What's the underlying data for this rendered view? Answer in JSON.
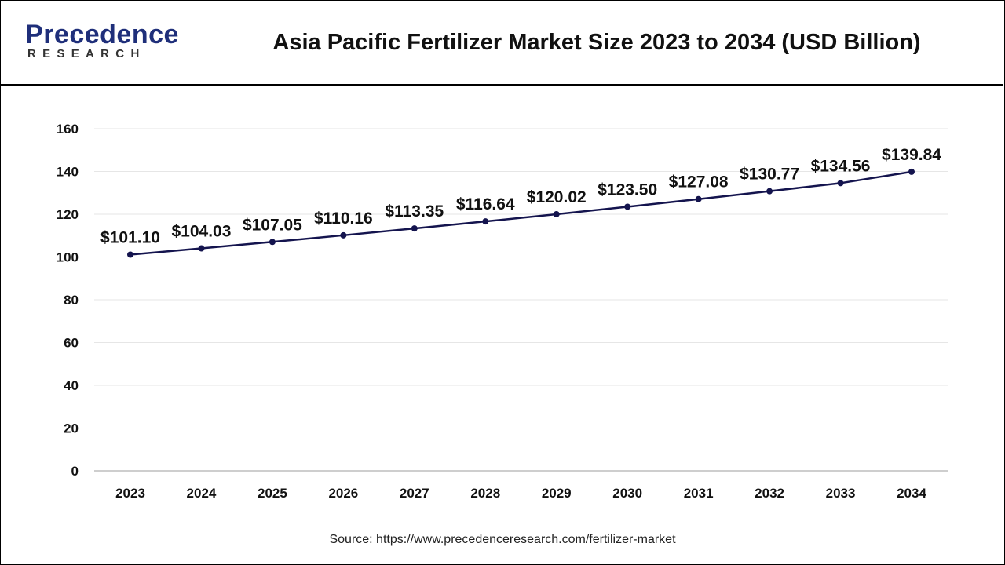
{
  "header": {
    "logo_initial": "P",
    "logo_rest": "recedence",
    "logo_sub": "RESEARCH",
    "title": "Asia Pacific Fertilizer Market Size 2023 to 2034 (USD Billion)"
  },
  "footer": {
    "source": "Source: https://www.precedenceresearch.com/fertilizer-market"
  },
  "colors": {
    "line": "#14144e",
    "grid": "#e6e6e6",
    "axis": "#bdbdbd",
    "brand": "#1f2f7a"
  },
  "chart_data": {
    "type": "line",
    "title": "Asia Pacific Fertilizer Market Size 2023 to 2034 (USD Billion)",
    "xlabel": "",
    "ylabel": "",
    "categories": [
      "2023",
      "2024",
      "2025",
      "2026",
      "2027",
      "2028",
      "2029",
      "2030",
      "2031",
      "2032",
      "2033",
      "2034"
    ],
    "values": [
      101.1,
      104.03,
      107.05,
      110.16,
      113.35,
      116.64,
      120.02,
      123.5,
      127.08,
      130.77,
      134.56,
      139.84
    ],
    "data_labels": [
      "$101.10",
      "$104.03",
      "$107.05",
      "$110.16",
      "$113.35",
      "$116.64",
      "$120.02",
      "$123.50",
      "$127.08",
      "$130.77",
      "$134.56",
      "$139.84"
    ],
    "ylim": [
      0,
      160
    ],
    "yticks": [
      0,
      20,
      40,
      60,
      80,
      100,
      120,
      140,
      160
    ],
    "grid": true,
    "legend": "none"
  }
}
